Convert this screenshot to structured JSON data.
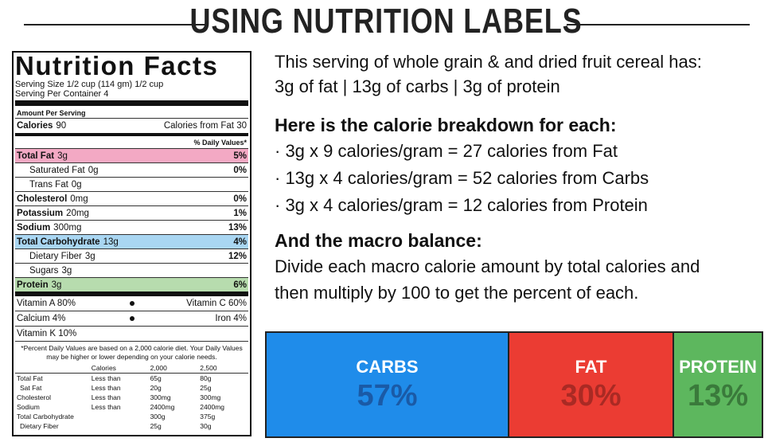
{
  "header": {
    "title": "USING NUTRITION LABELS"
  },
  "label": {
    "title": "Nutrition Facts",
    "serving_size": "Serving Size 1/2 cup (114 gm) 1/2 cup",
    "servings": "Serving Per Container 4",
    "amount_per_serving": "Amount Per Serving",
    "calories_label": "Calories",
    "calories_value": "90",
    "calories_from_fat": "Calories from Fat 30",
    "daily_values_header": "% Daily Values*",
    "nutrients": [
      {
        "name": "Total Fat",
        "amount": "3g",
        "dv": "5%",
        "bold": true,
        "indent": false,
        "highlight": "#f3a9c4"
      },
      {
        "name": "Saturated Fat",
        "amount": "0g",
        "dv": "0%",
        "bold": false,
        "indent": true
      },
      {
        "name": "Trans Fat",
        "amount": "0g",
        "bold": false,
        "indent": true
      },
      {
        "name": "Cholesterol",
        "amount": "0mg",
        "dv": "0%",
        "bold": true,
        "indent": false
      },
      {
        "name": "Potassium",
        "amount": "20mg",
        "dv": "1%",
        "bold": true,
        "indent": false
      },
      {
        "name": "Sodium",
        "amount": "300mg",
        "dv": "13%",
        "bold": true,
        "indent": false
      },
      {
        "name": "Total Carbohydrate",
        "amount": "13g",
        "dv": "4%",
        "bold": true,
        "indent": false,
        "highlight": "#a9d6f2"
      },
      {
        "name": "Dietary Fiber",
        "amount": "3g",
        "dv": "12%",
        "bold": false,
        "indent": true
      },
      {
        "name": "Sugars",
        "amount": "3g",
        "bold": false,
        "indent": true
      },
      {
        "name": "Protein",
        "amount": "3g",
        "dv": "6%",
        "bold": true,
        "indent": false,
        "highlight": "#b7dcae"
      }
    ],
    "vitamins": [
      [
        "Vitamin A 80%",
        "Vitamin C 60%"
      ],
      [
        "Calcium 4%",
        "Iron 4%"
      ],
      [
        "Vitamin K 10%"
      ]
    ],
    "footnote": "*Percent Daily Values are based on a 2,000 calorie diet. Your Daily Values may be higher or lower depending on your calorie needs.",
    "table_header": [
      "Calories",
      "2,000",
      "2,500"
    ],
    "table_rows": [
      [
        "Total Fat",
        "Less than",
        "65g",
        "80g"
      ],
      [
        "Sat Fat",
        "Less than",
        "20g",
        "25g"
      ],
      [
        "Cholesterol",
        "Less than",
        "300mg",
        "300mg"
      ],
      [
        "Sodium",
        "Less than",
        "2400mg",
        "2400mg"
      ],
      [
        "Total Carbohydrate",
        "300g",
        "375g"
      ],
      [
        "Dietary Fiber",
        "25g",
        "30g"
      ]
    ]
  },
  "intro": {
    "lines": [
      "This serving of whole grain & and dried fruit cereal has:",
      "3g of fat | 13g of carbs | 3g of protein"
    ]
  },
  "breakdown": {
    "heading": "Here is the calorie breakdown for each:",
    "items": [
      "· 3g x 9 calories/gram = 27 calories from Fat",
      "· 13g x 4 calories/gram = 52 calories from Carbs",
      "· 3g x 4 calories/gram = 12 calories from Protein"
    ]
  },
  "macro": {
    "heading": "And the macro balance:",
    "lines": [
      "Divide each macro calorie amount by total calories and",
      "then multiply by 100 to get the percent of each."
    ],
    "boxes": [
      {
        "name": "CARBS",
        "percent": "57%",
        "color": "#1f8cea",
        "text_color": "#1a5aa6"
      },
      {
        "name": "FAT",
        "percent": "30%",
        "color": "#eb3c33",
        "text_color": "#a92a24"
      },
      {
        "name": "PROTEIN",
        "percent": "13%",
        "color": "#5db75e",
        "text_color": "#3a7a3b"
      }
    ]
  }
}
